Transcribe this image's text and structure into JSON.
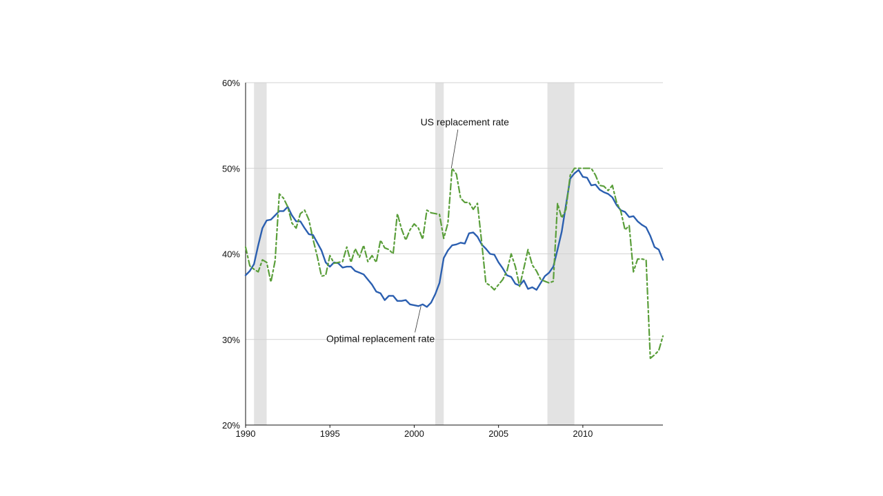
{
  "chart_data": {
    "type": "line",
    "title": "",
    "xlabel": "",
    "ylabel": "",
    "xlim": [
      1990,
      2014.75
    ],
    "ylim": [
      20,
      60
    ],
    "grid": "horizontal",
    "x_ticks": [
      1990,
      1995,
      2000,
      2005,
      2010
    ],
    "x_tick_labels": [
      "1990",
      "1995",
      "2000",
      "2005",
      "2010"
    ],
    "y_ticks": [
      20,
      30,
      40,
      50,
      60
    ],
    "y_tick_labels": [
      "20%",
      "30%",
      "40%",
      "50%",
      "60%"
    ],
    "recessions": [
      [
        1990.5,
        1991.25
      ],
      [
        2001.25,
        2001.75
      ],
      [
        2007.9,
        2009.5
      ]
    ],
    "colors": {
      "optimal": "#2b5fb0",
      "us": "#5a9e3a",
      "recession": "#e3e3e3",
      "grid": "#d2d2d2",
      "axis": "#111111"
    },
    "series": [
      {
        "name": "Optimal replacement rate",
        "style": "solid",
        "x": [
          1990.0,
          1990.25,
          1990.5,
          1990.75,
          1991.0,
          1991.25,
          1991.5,
          1991.75,
          1992.0,
          1992.25,
          1992.5,
          1992.75,
          1993.0,
          1993.25,
          1993.5,
          1993.75,
          1994.0,
          1994.25,
          1994.5,
          1994.75,
          1995.0,
          1995.25,
          1995.5,
          1995.75,
          1996.0,
          1996.25,
          1996.5,
          1996.75,
          1997.0,
          1997.25,
          1997.5,
          1997.75,
          1998.0,
          1998.25,
          1998.5,
          1998.75,
          1999.0,
          1999.25,
          1999.5,
          1999.75,
          2000.0,
          2000.25,
          2000.5,
          2000.75,
          2001.0,
          2001.25,
          2001.5,
          2001.75,
          2002.0,
          2002.25,
          2002.5,
          2002.75,
          2003.0,
          2003.25,
          2003.5,
          2003.75,
          2004.0,
          2004.25,
          2004.5,
          2004.75,
          2005.0,
          2005.25,
          2005.5,
          2005.75,
          2006.0,
          2006.25,
          2006.5,
          2006.75,
          2007.0,
          2007.25,
          2007.5,
          2007.75,
          2008.0,
          2008.25,
          2008.5,
          2008.75,
          2009.0,
          2009.25,
          2009.5,
          2009.75,
          2010.0,
          2010.25,
          2010.5,
          2010.75,
          2011.0,
          2011.25,
          2011.5,
          2011.75,
          2012.0,
          2012.25,
          2012.5,
          2012.75,
          2013.0,
          2013.25,
          2013.5,
          2013.75,
          2014.0,
          2014.25,
          2014.5,
          2014.75
        ],
        "values": [
          37.5,
          38.0,
          38.8,
          41.0,
          43.0,
          43.9,
          44.0,
          44.5,
          45.0,
          45.0,
          45.5,
          44.5,
          43.8,
          43.8,
          43.0,
          42.3,
          42.2,
          41.3,
          40.4,
          39.0,
          38.5,
          39.0,
          38.9,
          38.4,
          38.5,
          38.5,
          38.0,
          37.8,
          37.6,
          37.0,
          36.4,
          35.6,
          35.4,
          34.6,
          35.1,
          35.1,
          34.5,
          34.5,
          34.6,
          34.1,
          34.0,
          33.9,
          34.1,
          33.8,
          34.3,
          35.3,
          36.6,
          39.5,
          40.4,
          41.0,
          41.1,
          41.3,
          41.2,
          42.4,
          42.5,
          42.0,
          41.1,
          40.6,
          40.0,
          39.9,
          39.0,
          38.3,
          37.5,
          37.3,
          36.5,
          36.3,
          36.9,
          35.9,
          36.1,
          35.8,
          36.6,
          37.4,
          37.8,
          38.5,
          40.5,
          42.6,
          45.7,
          48.8,
          49.4,
          49.8,
          49.0,
          48.9,
          48.0,
          48.1,
          47.5,
          47.2,
          47.0,
          46.6,
          45.7,
          45.1,
          44.9,
          44.3,
          44.4,
          43.8,
          43.4,
          43.1,
          42.1,
          40.8,
          40.5,
          39.3
        ]
      },
      {
        "name": "US replacement rate",
        "style": "dash-dot",
        "x": [
          1990.0,
          1990.25,
          1990.5,
          1990.75,
          1991.0,
          1991.25,
          1991.5,
          1991.75,
          1992.0,
          1992.25,
          1992.5,
          1992.75,
          1993.0,
          1993.25,
          1993.5,
          1993.75,
          1994.0,
          1994.25,
          1994.5,
          1994.75,
          1995.0,
          1995.25,
          1995.5,
          1995.75,
          1996.0,
          1996.25,
          1996.5,
          1996.75,
          1997.0,
          1997.25,
          1997.5,
          1997.75,
          1998.0,
          1998.25,
          1998.5,
          1998.75,
          1999.0,
          1999.25,
          1999.5,
          1999.75,
          2000.0,
          2000.25,
          2000.5,
          2000.75,
          2001.0,
          2001.25,
          2001.5,
          2001.75,
          2002.0,
          2002.25,
          2002.5,
          2002.75,
          2003.0,
          2003.25,
          2003.5,
          2003.75,
          2004.0,
          2004.25,
          2004.5,
          2004.75,
          2005.0,
          2005.25,
          2005.5,
          2005.75,
          2006.0,
          2006.25,
          2006.5,
          2006.75,
          2007.0,
          2007.25,
          2007.5,
          2007.75,
          2008.0,
          2008.25,
          2008.5,
          2008.75,
          2009.0,
          2009.25,
          2009.5,
          2009.75,
          2010.0,
          2010.25,
          2010.5,
          2010.75,
          2011.0,
          2011.25,
          2011.5,
          2011.75,
          2012.0,
          2012.25,
          2012.5,
          2012.75,
          2013.0,
          2013.25,
          2013.5,
          2013.75,
          2014.0,
          2014.25,
          2014.5,
          2014.75
        ],
        "values": [
          40.8,
          38.6,
          38.2,
          37.9,
          39.3,
          39.0,
          36.7,
          39.2,
          47.0,
          46.5,
          45.5,
          43.6,
          43.0,
          44.7,
          45.1,
          44.0,
          41.7,
          39.7,
          37.4,
          37.5,
          39.8,
          38.9,
          39.0,
          39.1,
          40.8,
          39.0,
          40.6,
          39.6,
          41.0,
          39.1,
          39.8,
          39.0,
          41.6,
          40.7,
          40.5,
          40.0,
          44.7,
          42.9,
          41.6,
          42.8,
          43.5,
          43.0,
          41.7,
          45.1,
          44.8,
          44.7,
          44.6,
          41.8,
          43.6,
          50.0,
          49.3,
          46.5,
          46.0,
          46.0,
          45.2,
          45.9,
          41.4,
          36.6,
          36.3,
          35.8,
          36.4,
          37.0,
          38.0,
          40.0,
          38.5,
          36.2,
          38.3,
          40.5,
          38.7,
          38.0,
          37.0,
          36.8,
          36.6,
          36.8,
          45.9,
          44.2,
          45.2,
          49.2,
          50.0,
          50.0,
          50.0,
          50.0,
          50.0,
          49.2,
          48.0,
          47.9,
          47.4,
          48.0,
          46.0,
          45.0,
          42.8,
          43.3,
          37.9,
          39.4,
          39.4,
          39.3,
          27.8,
          28.2,
          28.7,
          30.4
        ]
      }
    ],
    "annotations": [
      {
        "text": "US replacement rate",
        "x": 2003.0,
        "y": 55.0,
        "arrow_to": [
          2002.2,
          50.0
        ]
      },
      {
        "text": "Optimal replacement rate",
        "x": 1998.0,
        "y": 29.7,
        "arrow_to": [
          2000.4,
          33.9
        ]
      }
    ]
  }
}
